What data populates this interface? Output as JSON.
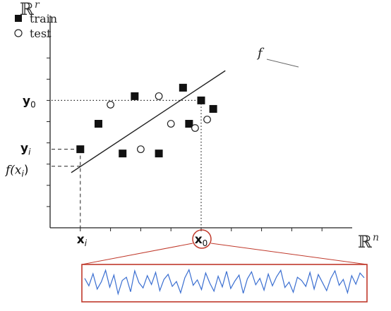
{
  "chart_data": {
    "type": "scatter",
    "title": "",
    "xlabel": "ℝ",
    "xlabel_superscript": "n",
    "ylabel": "ℝ",
    "ylabel_superscript": "r",
    "xlim": [
      0,
      10
    ],
    "ylim": [
      0,
      10
    ],
    "grid": false,
    "legend_position": "top-left",
    "legend": [
      {
        "name": "train",
        "marker": "filled-square"
      },
      {
        "name": "test",
        "marker": "open-circle"
      }
    ],
    "series": [
      {
        "name": "train",
        "marker": "filled-square",
        "points": [
          {
            "x": 1.0,
            "y": 3.7
          },
          {
            "x": 1.6,
            "y": 4.9
          },
          {
            "x": 2.4,
            "y": 3.5
          },
          {
            "x": 2.8,
            "y": 6.2
          },
          {
            "x": 3.6,
            "y": 3.5
          },
          {
            "x": 4.4,
            "y": 6.6
          },
          {
            "x": 4.6,
            "y": 4.9
          },
          {
            "x": 5.0,
            "y": 6.0
          },
          {
            "x": 5.4,
            "y": 5.6
          }
        ]
      },
      {
        "name": "test",
        "marker": "open-circle",
        "points": [
          {
            "x": 2.0,
            "y": 5.8
          },
          {
            "x": 3.0,
            "y": 3.7
          },
          {
            "x": 3.6,
            "y": 6.2
          },
          {
            "x": 4.0,
            "y": 4.9
          },
          {
            "x": 4.8,
            "y": 4.7
          },
          {
            "x": 5.2,
            "y": 5.1
          }
        ]
      }
    ],
    "regression_line": {
      "label": "f",
      "start": {
        "x": 0.7,
        "y": 2.6
      },
      "end": {
        "x": 5.8,
        "y": 7.4
      }
    },
    "annotations": {
      "xi": {
        "label": "x",
        "subscript": "i",
        "x": 1.0
      },
      "yi": {
        "label": "y",
        "subscript": "i",
        "y": 3.7
      },
      "fxi": {
        "label": "f(x",
        "subscript": "i",
        "suffix": ")",
        "y": 2.9
      },
      "x0": {
        "label": "x",
        "subscript": "0",
        "x": 5.0
      },
      "y0": {
        "label": "y",
        "subscript": "0",
        "y": 6.0
      }
    },
    "signal_inset": {
      "border_color": "#c0392b",
      "line_color": "#3b6fd1",
      "values": [
        0.18,
        -0.1,
        0.35,
        -0.22,
        0.05,
        0.48,
        -0.15,
        0.3,
        -0.4,
        0.1,
        0.22,
        -0.32,
        0.46,
        0.02,
        -0.18,
        0.28,
        -0.05,
        0.4,
        -0.28,
        0.14,
        0.33,
        -0.12,
        0.06,
        -0.36,
        0.2,
        0.5,
        -0.08,
        0.12,
        -0.24,
        0.38,
        0.0,
        -0.3,
        0.26,
        -0.14,
        0.44,
        -0.2,
        0.08,
        0.3,
        -0.38,
        0.16,
        0.42,
        -0.06,
        0.18,
        -0.26,
        0.34,
        -0.1,
        0.24,
        0.48,
        -0.16,
        0.04,
        -0.34,
        0.22,
        0.1,
        -0.12,
        0.4,
        -0.22,
        0.32,
        0.02,
        -0.28,
        0.18,
        0.46,
        -0.08,
        0.14,
        -0.36,
        0.28,
        -0.04,
        0.38,
        0.2
      ]
    }
  }
}
